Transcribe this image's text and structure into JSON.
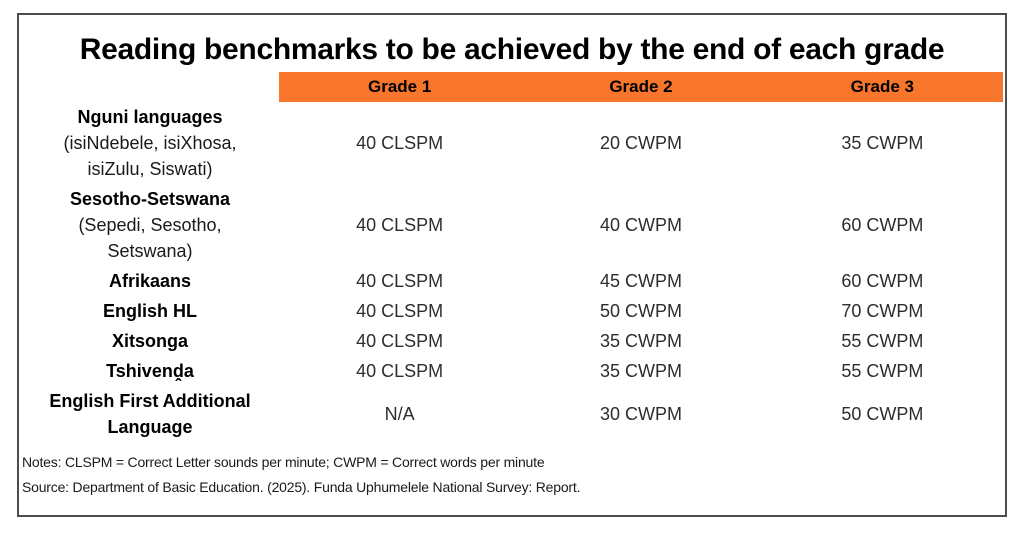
{
  "title": "Reading benchmarks to be achieved by the end of each grade",
  "colors": {
    "header_bg": "#F8762B",
    "card_border": "#4D4D4D",
    "title_text": "#000000",
    "value_text": "#2D2D2D"
  },
  "chart_data": {
    "type": "table",
    "title": "Reading benchmarks to be achieved by the end of each grade",
    "columns": [
      "Grade 1",
      "Grade 2",
      "Grade 3"
    ],
    "rows": [
      {
        "language": "Nguni languages",
        "sublabel": "(isiNdebele, isiXhosa,\nisiZulu, Siswati)",
        "grade1": "40 CLSPM",
        "grade2": "20 CWPM",
        "grade3": "35 CWPM"
      },
      {
        "language": "Sesotho-Setswana",
        "sublabel": "(Sepedi, Sesotho,\nSetswana)",
        "grade1": "40 CLSPM",
        "grade2": "40 CWPM",
        "grade3": "60 CWPM"
      },
      {
        "language": "Afrikaans",
        "sublabel": "",
        "grade1": "40 CLSPM",
        "grade2": "45 CWPM",
        "grade3": "60 CWPM"
      },
      {
        "language": "English HL",
        "sublabel": "",
        "grade1": "40 CLSPM",
        "grade2": "50 CWPM",
        "grade3": "70 CWPM"
      },
      {
        "language": "Xitsonga",
        "sublabel": "",
        "grade1": "40 CLSPM",
        "grade2": "35 CWPM",
        "grade3": "55 CWPM"
      },
      {
        "language": "Tshivenḓa",
        "sublabel": "",
        "grade1": "40 CLSPM",
        "grade2": "35 CWPM",
        "grade3": "55 CWPM"
      },
      {
        "language": "English First Additional\nLanguage",
        "sublabel": "",
        "grade1": "N/A",
        "grade2": "30 CWPM",
        "grade3": "50 CWPM"
      }
    ],
    "notes": "Notes: CLSPM = Correct Letter sounds per minute; CWPM = Correct words per minute",
    "source": "Source: Department of Basic Education. (2025). Funda Uphumelele National Survey: Report."
  }
}
